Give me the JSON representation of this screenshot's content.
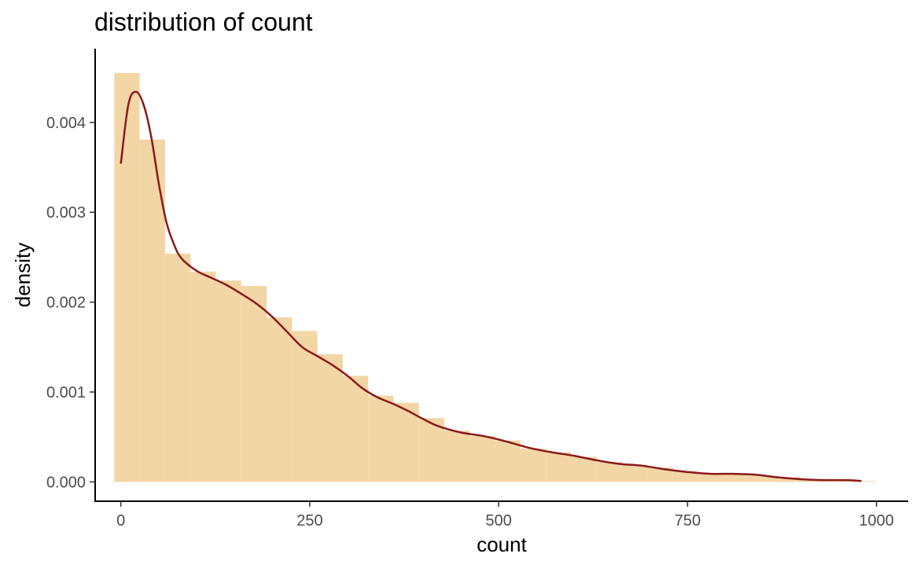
{
  "chart_data": {
    "type": "histogram",
    "title": "distribution of count",
    "xlabel": "count",
    "ylabel": "density",
    "xlim": [
      -34,
      1042
    ],
    "ylim": [
      -0.000215,
      0.00482
    ],
    "x_ticks": [
      0,
      250,
      500,
      750,
      1000
    ],
    "x_tick_labels": [
      "0",
      "250",
      "500",
      "750",
      "1000"
    ],
    "y_ticks": [
      0,
      0.001,
      0.002,
      0.003,
      0.004
    ],
    "y_tick_labels": [
      "0.000",
      "0.001",
      "0.002",
      "0.003",
      "0.004"
    ],
    "grid": false,
    "bin_width": 33.6,
    "histogram": {
      "bin_starts": [
        -8.7,
        24.9,
        58.5,
        92.1,
        125.7,
        159.3,
        192.9,
        226.5,
        260.1,
        293.7,
        327.3,
        360.9,
        394.5,
        428.1,
        461.7,
        495.3,
        528.9,
        562.5,
        596.1,
        629.7,
        663.3,
        696.9,
        730.5,
        764.1,
        797.7,
        831.3,
        864.9,
        898.5,
        932.1,
        965.7
      ],
      "density": [
        0.00455,
        0.00381,
        0.00254,
        0.00234,
        0.00224,
        0.00218,
        0.00183,
        0.00168,
        0.00142,
        0.00118,
        0.00096,
        0.00088,
        0.00071,
        0.00057,
        0.00051,
        0.00046,
        0.00037,
        0.00033,
        0.00028,
        0.00022,
        0.00019,
        0.00016,
        0.00012,
        9e-05,
        9e-05,
        7e-05,
        5e-05,
        3e-05,
        2e-05,
        1e-05
      ],
      "color": "#f2d6a5"
    },
    "density_curve": {
      "x": [
        0,
        10,
        20,
        30,
        40,
        50,
        60,
        70,
        80,
        100,
        120,
        140,
        160,
        180,
        200,
        220,
        240,
        260,
        280,
        300,
        320,
        340,
        360,
        380,
        400,
        420,
        450,
        480,
        510,
        540,
        570,
        600,
        630,
        660,
        690,
        720,
        750,
        780,
        810,
        840,
        870,
        900,
        930,
        960,
        980
      ],
      "y": [
        0.00354,
        0.0042,
        0.00434,
        0.0042,
        0.00385,
        0.00333,
        0.0029,
        0.00265,
        0.00249,
        0.00235,
        0.00227,
        0.00219,
        0.00209,
        0.00198,
        0.00184,
        0.00167,
        0.0015,
        0.0014,
        0.0013,
        0.00118,
        0.00104,
        0.00094,
        0.00087,
        0.00079,
        0.0007,
        0.00062,
        0.00055,
        0.00051,
        0.00045,
        0.00038,
        0.00033,
        0.00029,
        0.00024,
        0.0002,
        0.00018,
        0.00014,
        0.00011,
        9e-05,
        9e-05,
        8e-05,
        5e-05,
        3e-05,
        2e-05,
        2e-05,
        1e-05
      ],
      "color": "#8b1a1a"
    }
  }
}
